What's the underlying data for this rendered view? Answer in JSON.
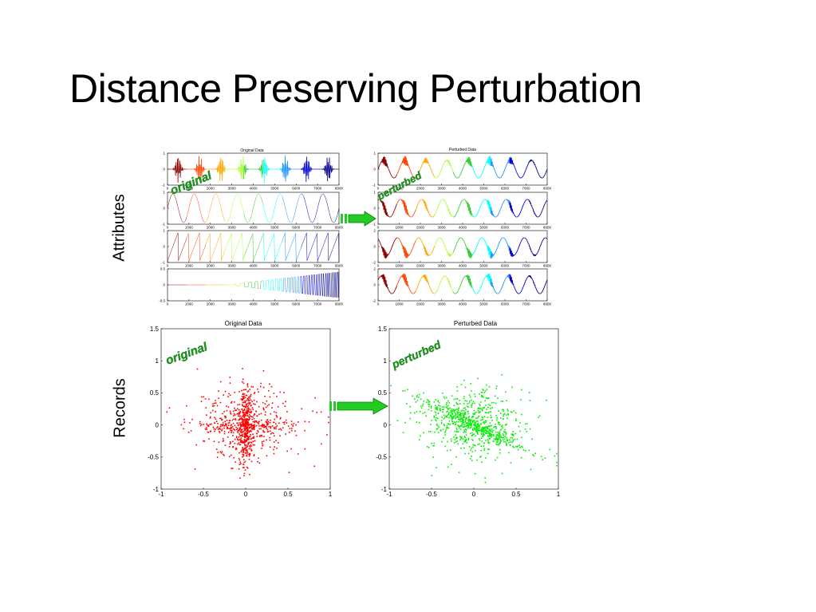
{
  "slide": {
    "title": "Distance Preserving Perturbation",
    "row_labels": {
      "attributes": "Attributes",
      "records": "Records"
    },
    "stamps": {
      "original": "original",
      "perturbed": "perturbed"
    }
  },
  "panels": {
    "attr_original_title": "Original Data",
    "attr_perturbed_title": "Perturbed Data",
    "rec_original_title": "Original Data",
    "rec_perturbed_title": "Perturbed Data"
  },
  "colors": {
    "stamp": "#1a9a1a",
    "arrow": "#22cc22",
    "original_points": "#ff0000",
    "perturbed_points": "#00ee00",
    "rainbow": [
      "#8b0000",
      "#ff4500",
      "#ffa500",
      "#adff2f",
      "#32cd32",
      "#00ffff",
      "#1e90ff",
      "#0000cd",
      "#00008b"
    ]
  },
  "chart_data": [
    {
      "type": "line",
      "title": "Original Data",
      "subplots": [
        {
          "ylim": [
            -1,
            1
          ],
          "yticks": [
            "1",
            "0",
            "-1"
          ],
          "kind": "bursts"
        },
        {
          "ylim": [
            -1,
            1
          ],
          "yticks": [
            "1",
            "0",
            "-1"
          ],
          "kind": "sine"
        },
        {
          "ylim": [
            -1,
            1
          ],
          "yticks": [
            "1",
            "0",
            "-1"
          ],
          "kind": "sawtooth"
        },
        {
          "ylim": [
            -0.5,
            0.5
          ],
          "yticks": [
            "0.5",
            "0",
            "-0.5"
          ],
          "kind": "chirp"
        }
      ],
      "xticks": [
        "0",
        "1000",
        "2000",
        "3000",
        "4000",
        "5000",
        "6000",
        "7000",
        "8000"
      ],
      "xlim": [
        0,
        8000
      ]
    },
    {
      "type": "line",
      "title": "Perturbed Data",
      "subplots": [
        {
          "ylim": [
            -1,
            1
          ],
          "yticks": [
            "1",
            "0",
            "-1"
          ]
        },
        {
          "ylim": [
            -1,
            1
          ],
          "yticks": [
            "1",
            "0",
            "-1"
          ]
        },
        {
          "ylim": [
            -2,
            2
          ],
          "yticks": [
            "2",
            "0",
            "-2"
          ]
        },
        {
          "ylim": [
            -2,
            2
          ],
          "yticks": [
            "2",
            "0",
            "-2"
          ]
        }
      ],
      "xticks": [
        "0",
        "1000",
        "2000",
        "3000",
        "4000",
        "5000",
        "6000",
        "7000",
        "8000"
      ],
      "xlim": [
        0,
        8000
      ]
    },
    {
      "type": "scatter",
      "title": "Original Data",
      "xlim": [
        -1,
        1
      ],
      "ylim": [
        -1,
        1.5
      ],
      "xticks": [
        "-1",
        "-0.5",
        "0",
        "0.5",
        "1"
      ],
      "yticks": [
        "1.5",
        "1",
        "0.5",
        "0",
        "-0.5",
        "-1"
      ],
      "series": [
        {
          "color": "red",
          "shape": "cross-shaped cloud concentrated near x = 0"
        }
      ]
    },
    {
      "type": "scatter",
      "title": "Perturbed Data",
      "xlim": [
        -1,
        1
      ],
      "ylim": [
        -1,
        1.5
      ],
      "xticks": [
        "-1",
        "-0.5",
        "0",
        "0.5",
        "1"
      ],
      "yticks": [
        "1.5",
        "1",
        "0.5",
        "0",
        "-0.5",
        "-1"
      ],
      "series": [
        {
          "color": "green",
          "shape": "rotated cloud concentrated along a descending diagonal"
        }
      ]
    }
  ]
}
